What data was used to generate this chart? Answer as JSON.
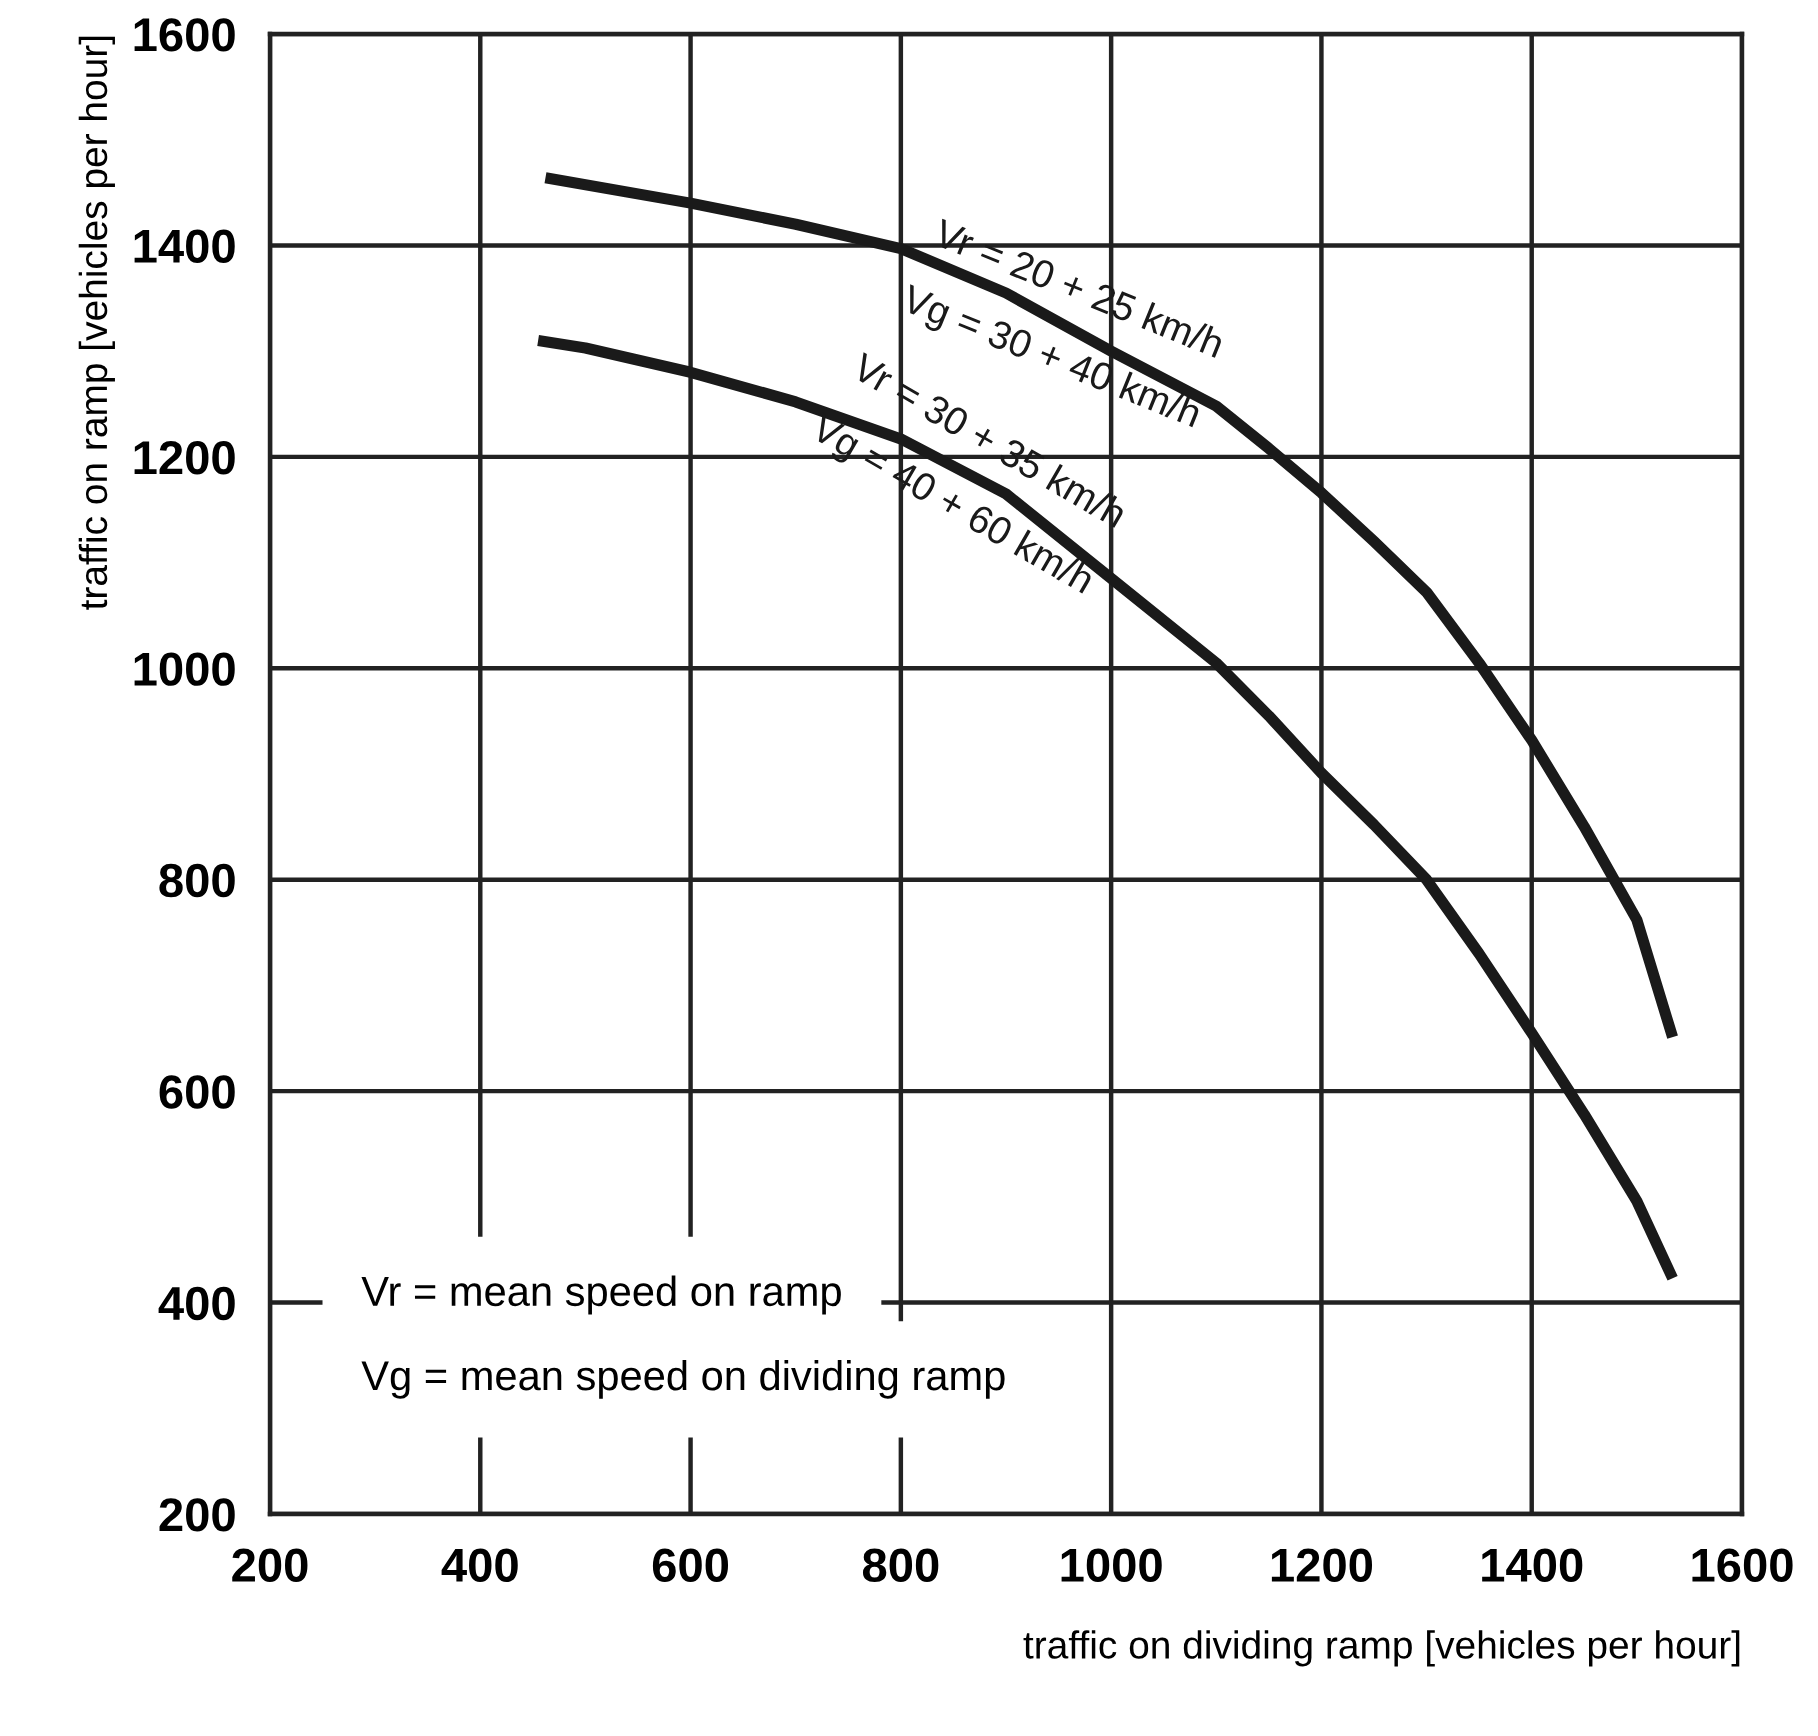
{
  "chart_data": {
    "type": "line",
    "xlabel": "traffic on dividing ramp [vehicles per hour]",
    "ylabel": "traffic on ramp [vehicles per hour]",
    "series": [
      {
        "name": "Vr = 20 + 25 km/h\nVg = 30 + 40 km/h",
        "color": "#1a1a1a",
        "x": [
          462,
          600,
          700,
          800,
          900,
          1000,
          1100,
          1150,
          1200,
          1250,
          1300,
          1350,
          1400,
          1450,
          1500,
          1534
        ],
        "values": [
          1464,
          1440,
          1420,
          1397,
          1355,
          1300,
          1248,
          1208,
          1166,
          1120,
          1072,
          1005,
          932,
          850,
          762,
          651
        ]
      },
      {
        "name": "Vr = 30 + 35 km/h\nVg = 40 + 60 km/h",
        "color": "#1a1a1a",
        "x": [
          455,
          500,
          600,
          700,
          800,
          900,
          1000,
          1100,
          1150,
          1200,
          1250,
          1300,
          1350,
          1400,
          1450,
          1500,
          1534
        ],
        "values": [
          1310,
          1303,
          1280,
          1252,
          1217,
          1165,
          1085,
          1005,
          955,
          901,
          852,
          800,
          730,
          655,
          578,
          496,
          423
        ]
      }
    ],
    "annotations": [
      "Vr = mean speed on ramp",
      "Vg = mean speed on dividing ramp"
    ],
    "xlim": [
      200,
      1600
    ],
    "ylim": [
      200,
      1600
    ],
    "xticks": [
      200,
      400,
      600,
      800,
      1000,
      1200,
      1400,
      1600
    ],
    "yticks": [
      200,
      400,
      600,
      800,
      1000,
      1200,
      1400,
      1600
    ],
    "grid": true,
    "legend": false,
    "marker": "none",
    "line_style": "solid"
  }
}
